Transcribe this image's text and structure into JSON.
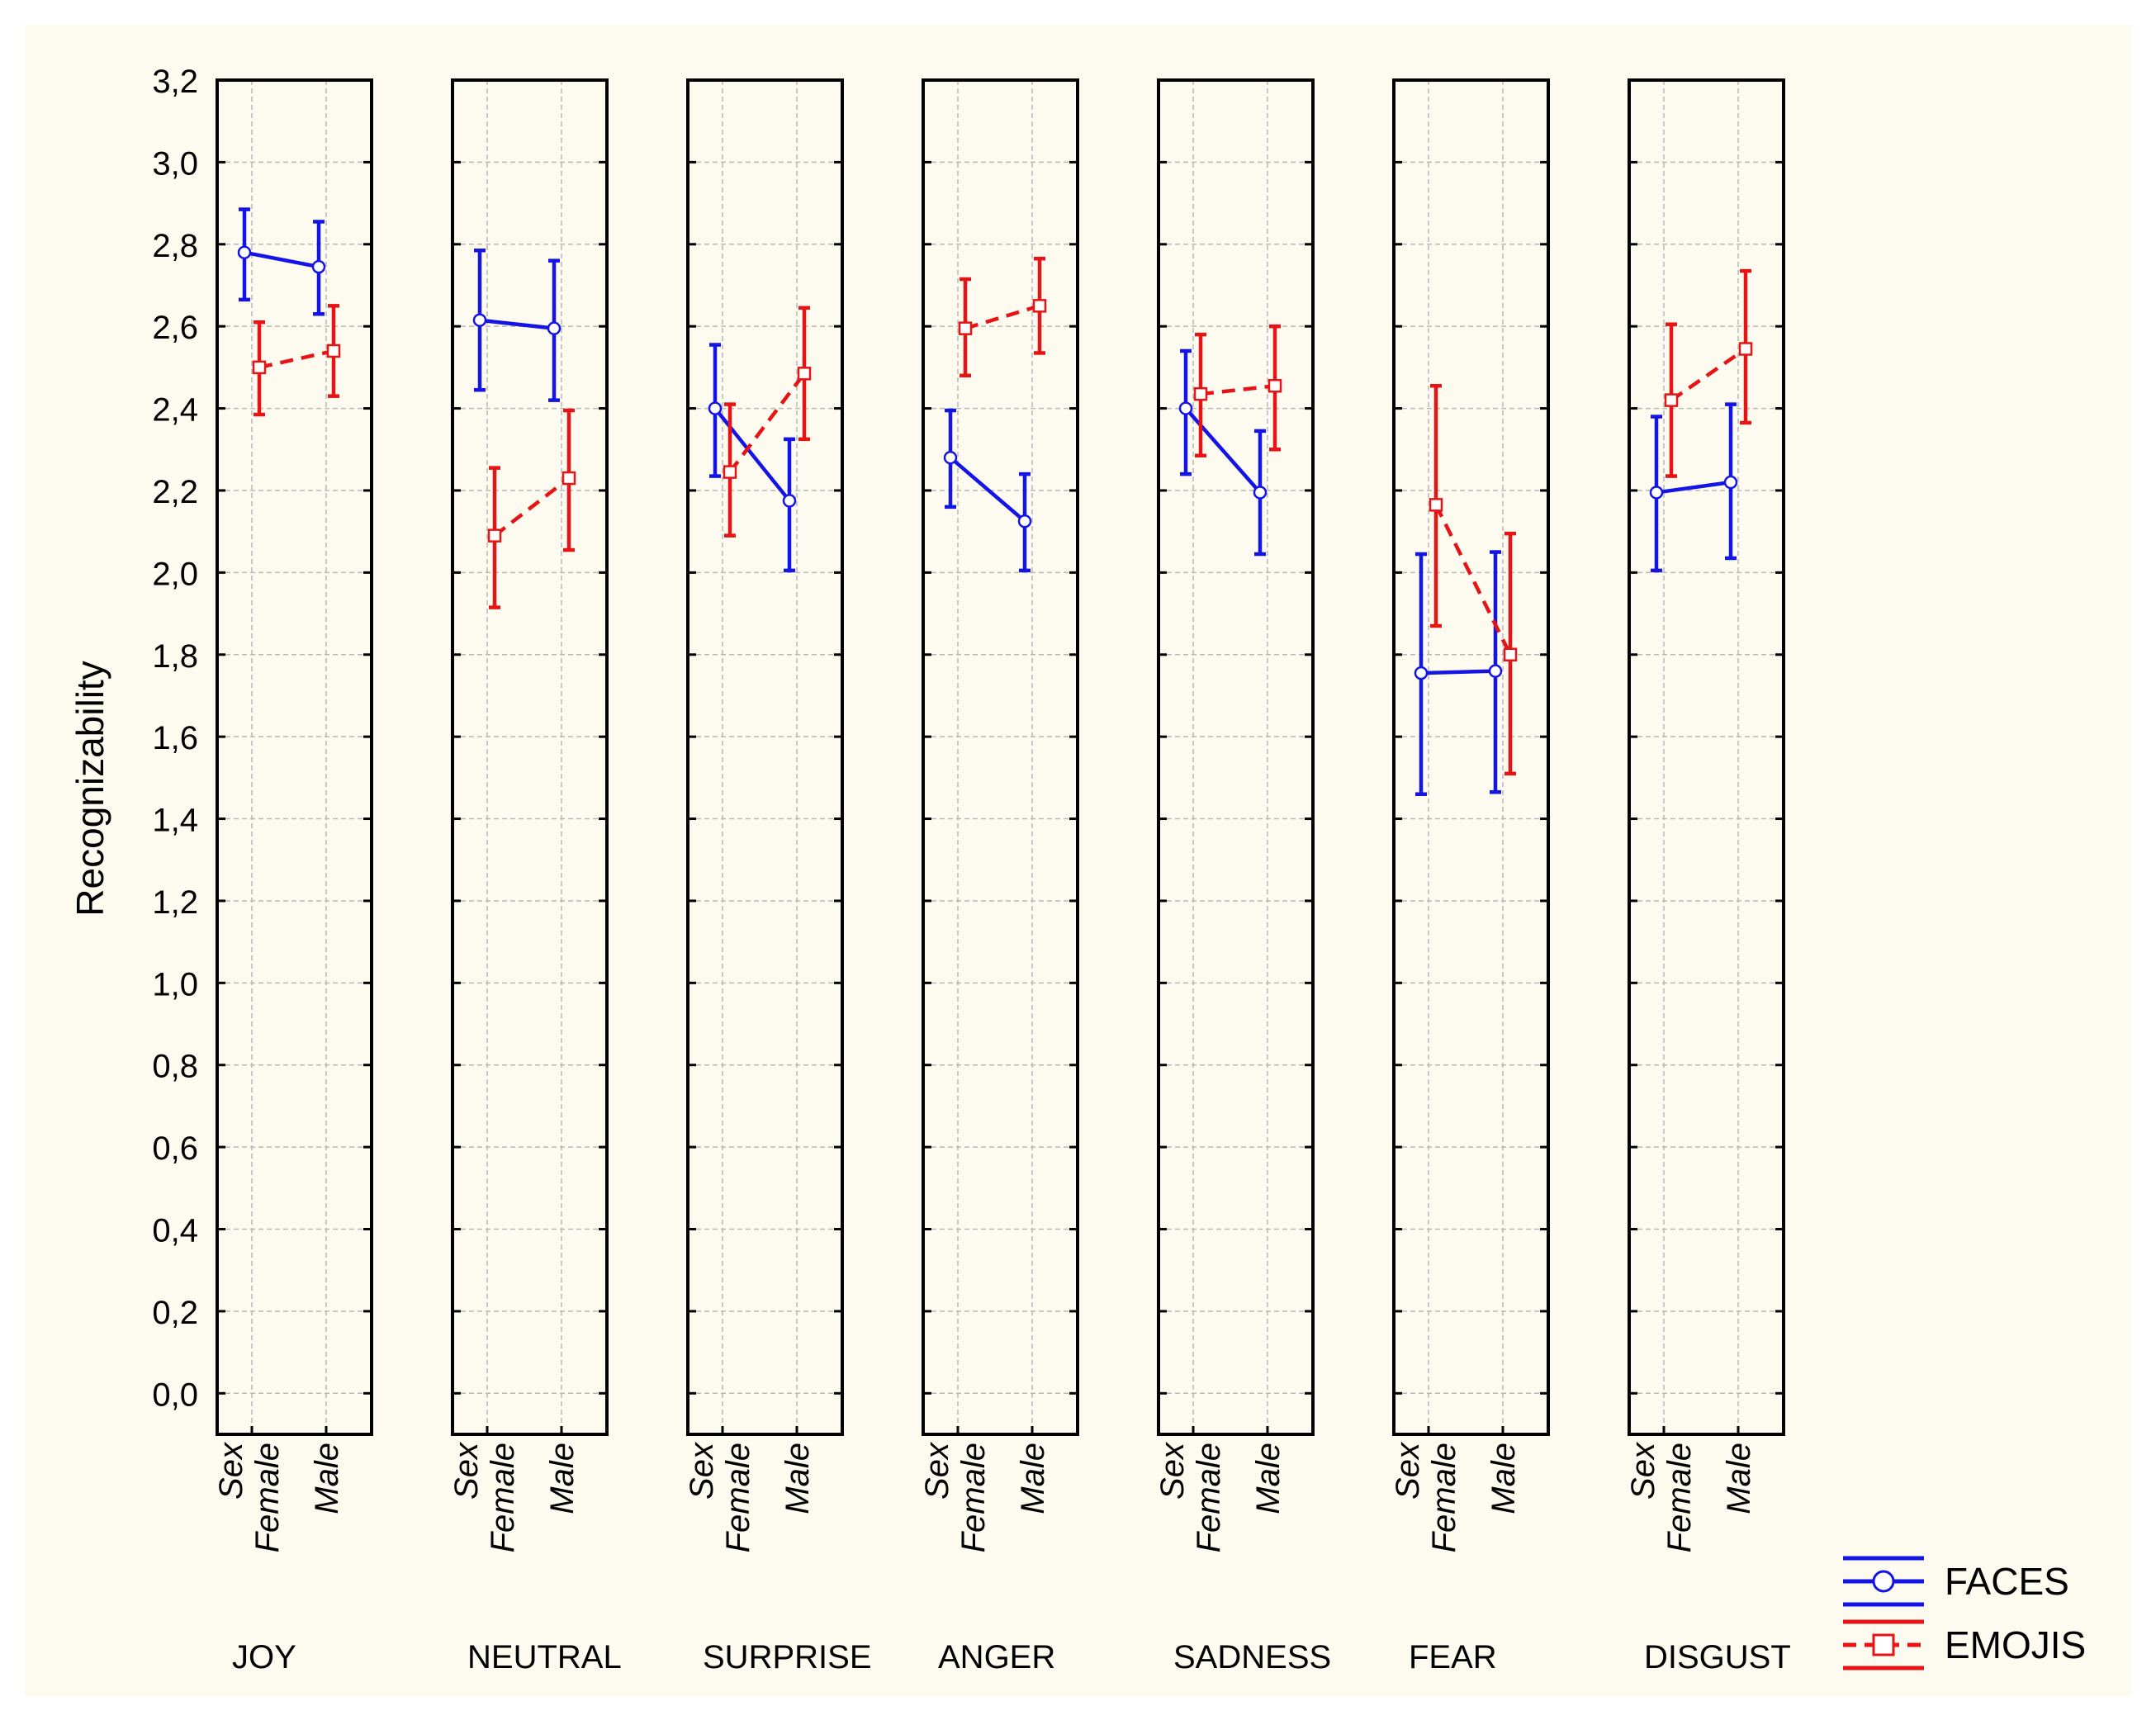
{
  "chart_data": {
    "type": "line",
    "ylabel": "Recognizability",
    "ylim": [
      -0.1,
      3.2
    ],
    "yticks": [
      "0,0",
      "0,2",
      "0,4",
      "0,6",
      "0,8",
      "1,0",
      "1,2",
      "1,4",
      "1,6",
      "1,8",
      "2,0",
      "2,2",
      "2,4",
      "2,6",
      "2,8",
      "3,0",
      "3,2"
    ],
    "ytick_values": [
      0,
      0.2,
      0.4,
      0.6,
      0.8,
      1.0,
      1.2,
      1.4,
      1.6,
      1.8,
      2.0,
      2.2,
      2.4,
      2.6,
      2.8,
      3.0,
      3.2
    ],
    "factor_label": "Sex",
    "x_categories": [
      "Female",
      "Male"
    ],
    "grid": true,
    "legend_position": "bottom-right",
    "colors": {
      "faces": "#1414e6",
      "emojis": "#e61414",
      "background": "#fdfaf0",
      "frame": "#000000",
      "grid": "#b8b8b8"
    },
    "series": [
      {
        "name": "FACES",
        "style": "solid",
        "marker": "circle"
      },
      {
        "name": "EMOJIS",
        "style": "dashed",
        "marker": "square"
      }
    ],
    "panels": [
      {
        "emotion": "JOY",
        "faces": [
          {
            "mean": 2.78,
            "low": 2.665,
            "high": 2.885
          },
          {
            "mean": 2.745,
            "low": 2.63,
            "high": 2.855
          }
        ],
        "emojis": [
          {
            "mean": 2.5,
            "low": 2.385,
            "high": 2.61
          },
          {
            "mean": 2.54,
            "low": 2.43,
            "high": 2.65
          }
        ]
      },
      {
        "emotion": "NEUTRAL",
        "faces": [
          {
            "mean": 2.615,
            "low": 2.445,
            "high": 2.785
          },
          {
            "mean": 2.595,
            "low": 2.42,
            "high": 2.76
          }
        ],
        "emojis": [
          {
            "mean": 2.09,
            "low": 1.915,
            "high": 2.255
          },
          {
            "mean": 2.23,
            "low": 2.055,
            "high": 2.395
          }
        ]
      },
      {
        "emotion": "SURPRISE",
        "faces": [
          {
            "mean": 2.4,
            "low": 2.235,
            "high": 2.555
          },
          {
            "mean": 2.175,
            "low": 2.005,
            "high": 2.325
          }
        ],
        "emojis": [
          {
            "mean": 2.245,
            "low": 2.09,
            "high": 2.41
          },
          {
            "mean": 2.485,
            "low": 2.325,
            "high": 2.645
          }
        ]
      },
      {
        "emotion": "ANGER",
        "faces": [
          {
            "mean": 2.28,
            "low": 2.16,
            "high": 2.395
          },
          {
            "mean": 2.125,
            "low": 2.005,
            "high": 2.24
          }
        ],
        "emojis": [
          {
            "mean": 2.595,
            "low": 2.48,
            "high": 2.715
          },
          {
            "mean": 2.65,
            "low": 2.535,
            "high": 2.765
          }
        ]
      },
      {
        "emotion": "SADNESS",
        "faces": [
          {
            "mean": 2.4,
            "low": 2.24,
            "high": 2.54
          },
          {
            "mean": 2.195,
            "low": 2.045,
            "high": 2.345
          }
        ],
        "emojis": [
          {
            "mean": 2.435,
            "low": 2.285,
            "high": 2.58
          },
          {
            "mean": 2.455,
            "low": 2.3,
            "high": 2.6
          }
        ]
      },
      {
        "emotion": "FEAR",
        "faces": [
          {
            "mean": 1.755,
            "low": 1.46,
            "high": 2.045
          },
          {
            "mean": 1.76,
            "low": 1.465,
            "high": 2.05
          }
        ],
        "emojis": [
          {
            "mean": 2.165,
            "low": 1.87,
            "high": 2.455
          },
          {
            "mean": 1.8,
            "low": 1.51,
            "high": 2.095
          }
        ]
      },
      {
        "emotion": "DISGUST",
        "faces": [
          {
            "mean": 2.195,
            "low": 2.005,
            "high": 2.38
          },
          {
            "mean": 2.22,
            "low": 2.035,
            "high": 2.41
          }
        ],
        "emojis": [
          {
            "mean": 2.42,
            "low": 2.235,
            "high": 2.605
          },
          {
            "mean": 2.545,
            "low": 2.365,
            "high": 2.735
          }
        ]
      }
    ]
  }
}
